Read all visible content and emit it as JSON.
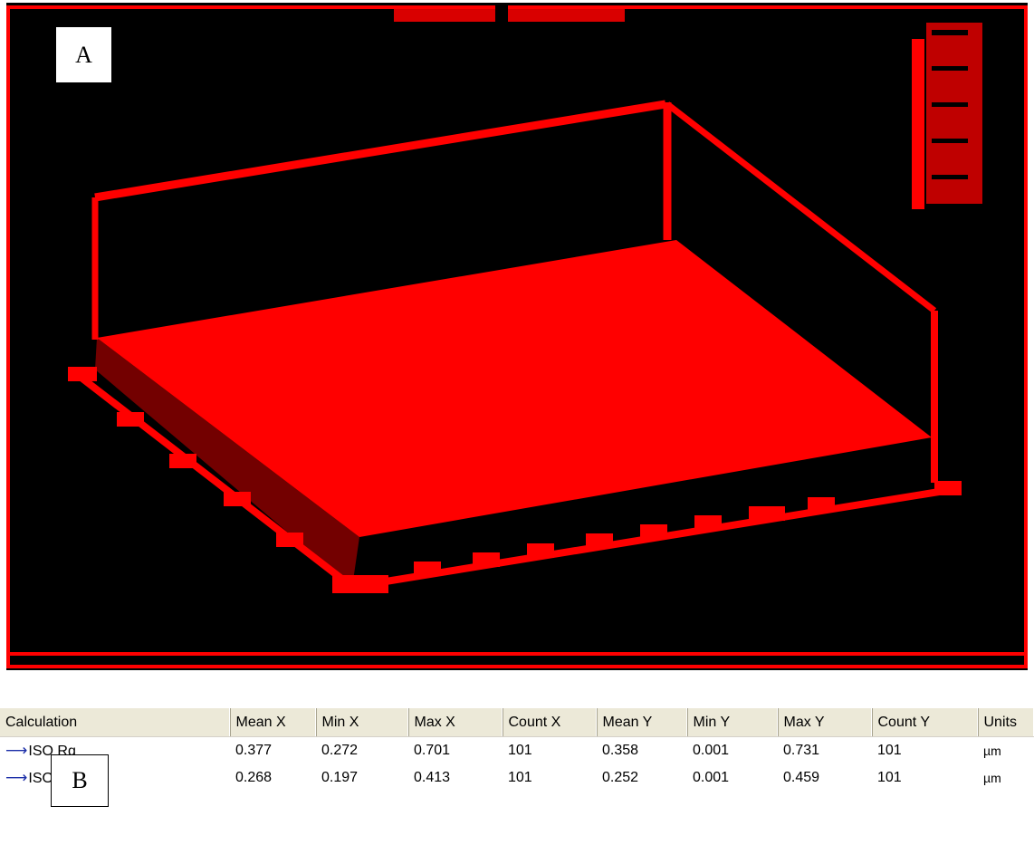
{
  "panel_labels": {
    "a": "A",
    "b": "B"
  },
  "table": {
    "columns": [
      "Calculation",
      "Mean X",
      "Min X",
      "Max X",
      "Count X",
      "Mean Y",
      "Min Y",
      "Max Y",
      "Count Y",
      "Units"
    ],
    "rows": [
      {
        "name": "ISO Rq",
        "mean_x": "0.377",
        "min_x": "0.272",
        "max_x": "0.701",
        "count_x": "101",
        "mean_y": "0.358",
        "min_y": "0.001",
        "max_y": "0.731",
        "count_y": "101",
        "units": "µm"
      },
      {
        "name": "ISO Ra",
        "mean_x": "0.268",
        "min_x": "0.197",
        "max_x": "0.413",
        "count_x": "101",
        "mean_y": "0.252",
        "min_y": "0.001",
        "max_y": "0.459",
        "count_y": "101",
        "units": "µm"
      }
    ]
  },
  "icons": {
    "row_marker": "arrow-right-icon"
  },
  "colors": {
    "plot_background": "#000000",
    "plot_foreground": "#ff0000",
    "header_background": "#ece9d8",
    "arrow": "#1c2fa8"
  }
}
